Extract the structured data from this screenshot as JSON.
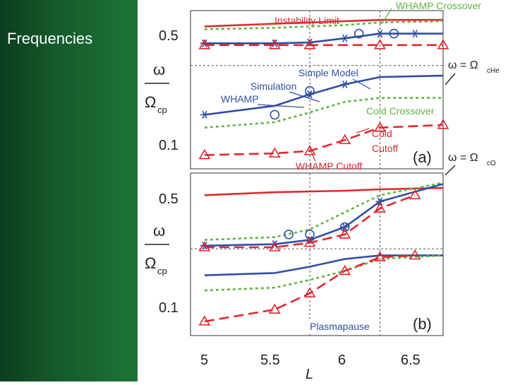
{
  "slide": {
    "title": "Frequencies"
  },
  "colors": {
    "red": "#e0282e",
    "blue": "#2f4fa3",
    "green": "#5db443",
    "annot": "#d7282f",
    "text": "#222222"
  },
  "chart_data": {
    "type": "line",
    "xlabel": "L",
    "x_ticks": [
      "5",
      "5.5",
      "6",
      "6.5"
    ],
    "xlim": [
      4.9,
      6.7
    ],
    "ylabel_top": "ω",
    "ylabel_bottom": "Ω",
    "ylabel_sub": "cp",
    "y_scale": "log",
    "ylim": [
      0.07,
      0.65
    ],
    "y_ticks": [
      "0.1",
      "0.5"
    ],
    "plasmapause_L": 5.75,
    "whamp_crossover_L": 6.25,
    "panels": [
      {
        "id": "a",
        "label": "(a)",
        "series": [
          {
            "name": "Instability Limit",
            "style": "red-solid",
            "x": [
              5.0,
              5.5,
              6.0,
              6.25,
              6.7
            ],
            "y": [
              0.52,
              0.54,
              0.56,
              0.57,
              0.57
            ]
          },
          {
            "name": "WHAMP Crossover",
            "style": "green-dot",
            "x": [
              5.0,
              5.5,
              6.0,
              6.25,
              6.7
            ],
            "y": [
              0.5,
              0.51,
              0.53,
              0.55,
              0.56
            ]
          },
          {
            "name": "Simple Model",
            "style": "blue-solid",
            "x": [
              5.0,
              5.5,
              5.75,
              6.0,
              6.25,
              6.7
            ],
            "y": [
              0.41,
              0.41,
              0.415,
              0.44,
              0.47,
              0.47
            ]
          },
          {
            "name": "WHAMP",
            "style": "blue-star",
            "x": [
              5.0,
              5.5,
              5.75,
              6.0,
              6.25,
              6.5
            ],
            "y": [
              0.41,
              0.41,
              0.415,
              0.44,
              0.47,
              0.47
            ]
          },
          {
            "name": "Simulation",
            "style": "blue-circle",
            "x": [
              5.5,
              5.75,
              6.1,
              6.35
            ],
            "y": [
              0.15,
              0.21,
              0.47,
              0.47
            ]
          },
          {
            "name": "ω=Ω cHe",
            "style": "red-dash",
            "x": [
              5.0,
              5.5,
              5.75,
              6.0,
              6.25,
              6.7
            ],
            "y": [
              0.4,
              0.4,
              0.4,
              0.4,
              0.4,
              0.4
            ]
          },
          {
            "name": "Simple Model (cHe)",
            "style": "blue-solid",
            "x": [
              5.0,
              5.5,
              5.75,
              6.0,
              6.25,
              6.7
            ],
            "y": [
              0.15,
              0.17,
              0.2,
              0.23,
              0.255,
              0.26
            ]
          },
          {
            "name": "WHAMP (cHe)",
            "style": "blue-star",
            "x": [
              5.0,
              5.75,
              6.0
            ],
            "y": [
              0.15,
              0.2,
              0.23
            ]
          },
          {
            "name": "Cold Crossover",
            "style": "green-dot",
            "x": [
              5.0,
              5.5,
              5.75,
              6.0,
              6.25,
              6.7
            ],
            "y": [
              0.125,
              0.135,
              0.155,
              0.18,
              0.19,
              0.19
            ]
          },
          {
            "name": "Cold Cutoff",
            "style": "red-dash-tri",
            "x": [
              5.0,
              5.5,
              5.75,
              6.0,
              6.25,
              6.7
            ],
            "y": [
              0.085,
              0.087,
              0.09,
              0.105,
              0.125,
              0.13
            ]
          },
          {
            "name": "Instability triangles",
            "style": "red-tri",
            "x": [
              5.0,
              5.5,
              5.75,
              6.25,
              6.7
            ],
            "y": [
              0.4,
              0.4,
              0.4,
              0.4,
              0.4
            ]
          }
        ],
        "annotations": [
          "Instability Limit",
          "WHAMP Crossover",
          "Simple Model",
          "Simulation",
          "WHAMP",
          "Cold Crossover",
          "Cold",
          "Cutoff",
          "WHAMP Cutoff"
        ]
      },
      {
        "id": "b",
        "label": "(b)",
        "series": [
          {
            "name": "Instability Limit",
            "style": "red-solid",
            "x": [
              5.0,
              5.5,
              6.0,
              6.25,
              6.7
            ],
            "y": [
              0.48,
              0.5,
              0.51,
              0.52,
              0.53
            ]
          },
          {
            "name": "WHAMP Crossover",
            "style": "green-dot",
            "x": [
              5.0,
              5.5,
              5.75,
              6.0,
              6.25,
              6.7
            ],
            "y": [
              0.26,
              0.27,
              0.3,
              0.38,
              0.48,
              0.57
            ]
          },
          {
            "name": "Simple Model",
            "style": "blue-solid",
            "x": [
              5.0,
              5.5,
              5.75,
              6.0,
              6.25,
              6.7
            ],
            "y": [
              0.24,
              0.245,
              0.26,
              0.31,
              0.44,
              0.56
            ]
          },
          {
            "name": "WHAMP",
            "style": "blue-star",
            "x": [
              5.0,
              5.5,
              5.75,
              6.0,
              6.25
            ],
            "y": [
              0.24,
              0.245,
              0.26,
              0.31,
              0.44
            ]
          },
          {
            "name": "Simulation",
            "style": "blue-circle",
            "x": [
              5.6,
              5.75,
              6.0
            ],
            "y": [
              0.28,
              0.28,
              0.31
            ]
          },
          {
            "name": "Cutoff",
            "style": "red-dash-tri",
            "x": [
              5.0,
              5.5,
              5.75,
              6.0,
              6.25,
              6.5
            ],
            "y": [
              0.235,
              0.235,
              0.25,
              0.28,
              0.4,
              0.48
            ]
          },
          {
            "name": "Simple Model (lower)",
            "style": "blue-solid",
            "x": [
              5.0,
              5.5,
              5.75,
              6.0,
              6.25,
              6.7
            ],
            "y": [
              0.16,
              0.165,
              0.18,
              0.2,
              0.21,
              0.21
            ]
          },
          {
            "name": "Cold Crossover",
            "style": "green-dot",
            "x": [
              5.0,
              5.5,
              5.75,
              6.0,
              6.25,
              6.7
            ],
            "y": [
              0.13,
              0.135,
              0.15,
              0.17,
              0.2,
              0.21
            ]
          },
          {
            "name": "Cold Cutoff",
            "style": "red-dash-tri",
            "x": [
              5.0,
              5.5,
              5.75,
              6.0,
              6.25,
              6.5
            ],
            "y": [
              0.085,
              0.1,
              0.125,
              0.17,
              0.205,
              0.21
            ]
          }
        ],
        "annotations": [
          "Plasmapause"
        ]
      }
    ],
    "side_labels": [
      {
        "text": "ω = Ω",
        "sub": "cHe"
      },
      {
        "text": "ω = Ω",
        "sub": "cO"
      }
    ]
  }
}
